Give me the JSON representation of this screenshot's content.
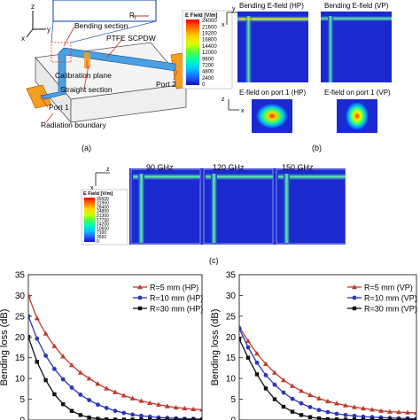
{
  "panel_a": {
    "labels": {
      "bending_section": "Bending section",
      "ptfe": "PTFE SCPDW",
      "calibration": "Calibration plane",
      "straight": "Straight section",
      "port1": "Port 1",
      "port2": "Port 2",
      "radiation": "Radiation boundary",
      "ri": "R",
      "ri_sub": "i"
    },
    "axes": {
      "z": "z",
      "y": "y",
      "x": "x"
    },
    "caption": "(a)"
  },
  "panel_b": {
    "colorbar": {
      "title": "E Field [V/m]",
      "ticks": [
        "24000",
        "21600",
        "19200",
        "16800",
        "14400",
        "12000",
        "9600",
        "7200",
        "4800",
        "2400",
        "0"
      ]
    },
    "axes": {
      "y": "y",
      "x": "x",
      "z": "z"
    },
    "titles": {
      "bend_hp": "Bending E-field (HP)",
      "bend_vp": "Bending E-field (VP)",
      "port_hp": "E-field on port 1 (HP)",
      "port_vp": "E-field on port 1 (VP)"
    },
    "caption": "(b)"
  },
  "panel_c": {
    "colorbar": {
      "title": "E Field [V/m]",
      "ticks": [
        "35500",
        "31950",
        "28400",
        "24850",
        "21300",
        "17750",
        "14200",
        "10650",
        "7100",
        "3550",
        "0"
      ]
    },
    "axes": {
      "z": "z",
      "x": "x"
    },
    "freqs": [
      "90 GHz",
      "120 GHz",
      "150 GHz"
    ],
    "caption": "(c)"
  },
  "chart_data": [
    {
      "type": "line",
      "ylabel": "Bending loss (dB)",
      "ylim": [
        0,
        35
      ],
      "yticks": [
        0,
        5,
        10,
        15,
        20,
        25,
        30,
        35
      ],
      "xlim": [
        0,
        20
      ],
      "grid": false,
      "legend_position": "top-right",
      "series": [
        {
          "name": "R=5 mm (HP)",
          "color": "#c0392b",
          "marker": "triangle",
          "x": [
            0,
            1,
            2,
            3,
            4,
            5,
            6,
            7,
            8,
            9,
            10,
            11,
            12,
            13,
            14,
            15,
            16,
            17,
            18,
            19,
            20
          ],
          "y": [
            30,
            24.5,
            20.8,
            17.8,
            15.3,
            13.2,
            11.4,
            10.0,
            8.7,
            7.6,
            6.7,
            5.9,
            5.2,
            4.6,
            4.1,
            3.7,
            3.3,
            3.0,
            2.8,
            2.6,
            2.5
          ]
        },
        {
          "name": "R=10 mm (HP)",
          "color": "#2a36b8",
          "marker": "circle",
          "x": [
            0,
            1,
            2,
            3,
            4,
            5,
            6,
            7,
            8,
            9,
            10,
            11,
            12,
            13,
            14,
            15,
            16,
            17,
            18,
            19,
            20
          ],
          "y": [
            25,
            19.6,
            15.5,
            12.3,
            9.8,
            7.8,
            6.1,
            4.8,
            3.7,
            2.9,
            2.2,
            1.7,
            1.3,
            1.0,
            0.8,
            0.6,
            0.5,
            0.4,
            0.3,
            0.3,
            0.2
          ]
        },
        {
          "name": "R=30 mm (HP)",
          "color": "#111111",
          "marker": "square",
          "x": [
            0,
            1,
            2,
            3,
            4,
            5,
            6,
            7,
            8,
            9,
            10,
            11,
            12,
            13,
            14,
            15,
            16,
            17,
            18,
            19,
            20
          ],
          "y": [
            20,
            14.0,
            9.6,
            6.2,
            3.8,
            2.2,
            1.2,
            0.6,
            0.3,
            0.15,
            0.1,
            0.1,
            0.1,
            0.1,
            0.1,
            0.1,
            0.1,
            0.1,
            0.1,
            0.1,
            0.1
          ]
        }
      ]
    },
    {
      "type": "line",
      "ylabel": "Bending loss (dB)",
      "ylim": [
        0,
        35
      ],
      "yticks": [
        0,
        5,
        10,
        15,
        20,
        25,
        30,
        35
      ],
      "xlim": [
        0,
        20
      ],
      "grid": false,
      "legend_position": "top-right",
      "series": [
        {
          "name": "R=5 mm (VP)",
          "color": "#c0392b",
          "marker": "triangle",
          "x": [
            0,
            1,
            2,
            3,
            4,
            5,
            6,
            7,
            8,
            9,
            10,
            11,
            12,
            13,
            14,
            15,
            16,
            17,
            18,
            19,
            20
          ],
          "y": [
            22.5,
            19.0,
            16.0,
            13.5,
            11.4,
            9.6,
            8.2,
            7.0,
            6.0,
            5.2,
            4.5,
            4.0,
            3.5,
            3.1,
            2.8,
            2.5,
            2.2,
            2.0,
            1.9,
            1.8,
            1.7
          ]
        },
        {
          "name": "R=10 mm (VP)",
          "color": "#2a36b8",
          "marker": "circle",
          "x": [
            0,
            1,
            2,
            3,
            4,
            5,
            6,
            7,
            8,
            9,
            10,
            11,
            12,
            13,
            14,
            15,
            16,
            17,
            18,
            19,
            20
          ],
          "y": [
            22,
            17.5,
            13.8,
            10.8,
            8.5,
            6.6,
            5.1,
            4.0,
            3.1,
            2.4,
            1.9,
            1.5,
            1.2,
            1.0,
            0.8,
            0.7,
            0.6,
            0.5,
            0.4,
            0.4,
            0.3
          ]
        },
        {
          "name": "R=30 mm (VP)",
          "color": "#111111",
          "marker": "square",
          "x": [
            0,
            1,
            2,
            3,
            4,
            5,
            6,
            7,
            8,
            9,
            10,
            11,
            12,
            13,
            14,
            15,
            16,
            17,
            18,
            19,
            20
          ],
          "y": [
            19.5,
            15.0,
            11.0,
            7.6,
            5.0,
            3.2,
            2.0,
            1.2,
            0.7,
            0.4,
            0.2,
            0.15,
            0.1,
            0.1,
            0.1,
            0.1,
            0.1,
            0.1,
            0.1,
            0.1,
            0.1
          ]
        }
      ]
    }
  ]
}
